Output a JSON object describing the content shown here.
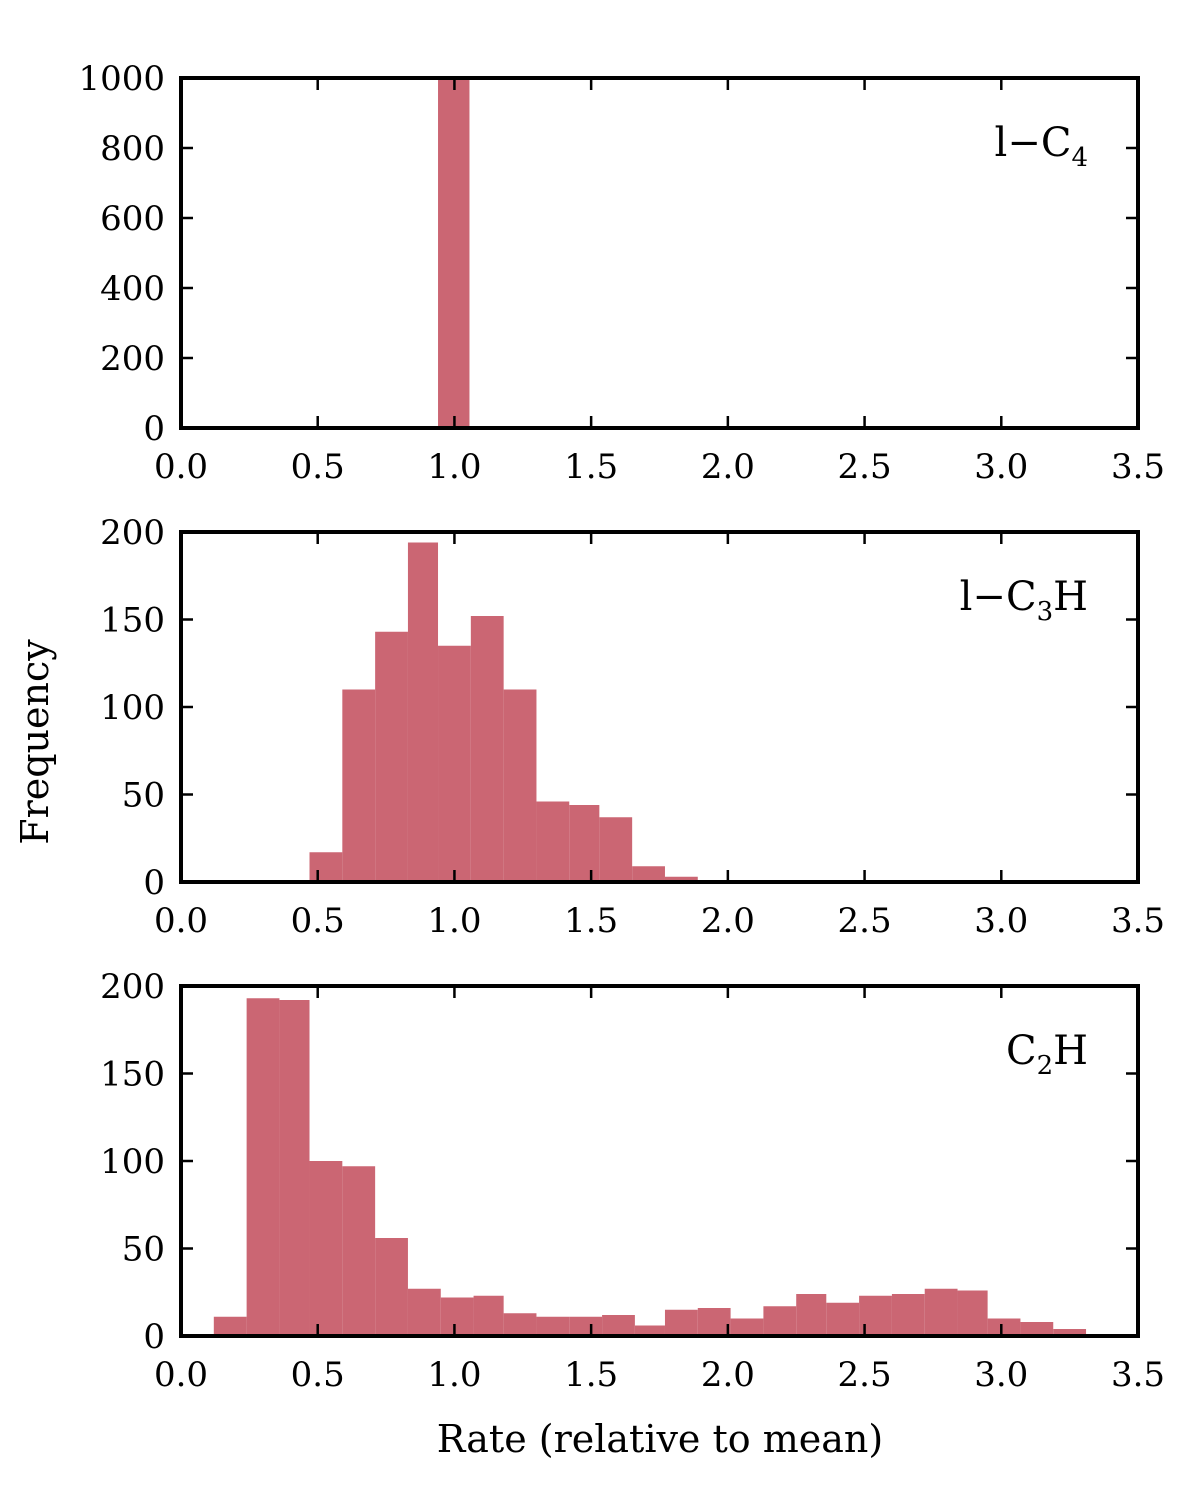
{
  "figure": {
    "ylabel": "Frequency",
    "xlabel": "Rate (relative to mean)"
  },
  "chart_data": [
    {
      "type": "bar",
      "label_main": "l−C",
      "label_sub": "4",
      "xlim": [
        0.0,
        3.5
      ],
      "ylim": [
        0,
        1000
      ],
      "xticks": [
        "0.0",
        "0.5",
        "1.0",
        "1.5",
        "2.0",
        "2.5",
        "3.0",
        "3.5"
      ],
      "yticks": [
        "0",
        "200",
        "400",
        "600",
        "800",
        "1000"
      ],
      "bin_edges": [
        0.94,
        1.055
      ],
      "values": [
        1000
      ]
    },
    {
      "type": "bar",
      "label_main": "l−C",
      "label_sub": "3",
      "label_tail": "H",
      "xlim": [
        0.0,
        3.5
      ],
      "ylim": [
        0,
        200
      ],
      "xticks": [
        "0.0",
        "0.5",
        "1.0",
        "1.5",
        "2.0",
        "2.5",
        "3.0",
        "3.5"
      ],
      "yticks": [
        "0",
        "50",
        "100",
        "150",
        "200"
      ],
      "bin_edges": [
        0.47,
        0.59,
        0.71,
        0.83,
        0.94,
        1.06,
        1.18,
        1.3,
        1.42,
        1.53,
        1.65,
        1.77,
        1.89
      ],
      "values": [
        17,
        110,
        143,
        194,
        135,
        152,
        110,
        46,
        44,
        37,
        9,
        3
      ]
    },
    {
      "type": "bar",
      "label_main": "C",
      "label_sub": "2",
      "label_tail": "H",
      "xlim": [
        0.0,
        3.5
      ],
      "ylim": [
        0,
        200
      ],
      "xticks": [
        "0.0",
        "0.5",
        "1.0",
        "1.5",
        "2.0",
        "2.5",
        "3.0",
        "3.5"
      ],
      "yticks": [
        "0",
        "50",
        "100",
        "150",
        "200"
      ],
      "bin_edges": [
        0.12,
        0.24,
        0.36,
        0.47,
        0.59,
        0.71,
        0.83,
        0.95,
        1.07,
        1.18,
        1.3,
        1.42,
        1.54,
        1.66,
        1.77,
        1.89,
        2.01,
        2.13,
        2.25,
        2.36,
        2.48,
        2.6,
        2.72,
        2.84,
        2.95,
        3.07,
        3.19,
        3.31
      ],
      "values": [
        11,
        193,
        192,
        100,
        97,
        56,
        27,
        22,
        23,
        13,
        11,
        11,
        12,
        6,
        15,
        16,
        10,
        17,
        24,
        19,
        23,
        24,
        27,
        26,
        10,
        8,
        4
      ]
    }
  ]
}
